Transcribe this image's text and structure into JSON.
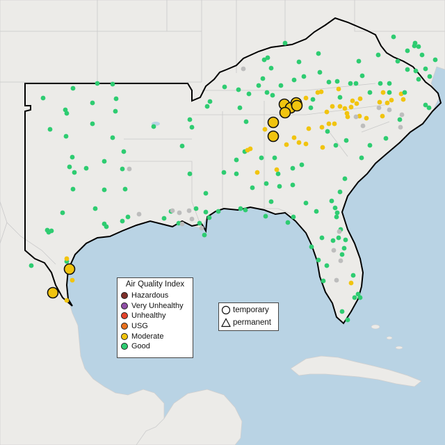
{
  "legend_aqi": {
    "title": "Air Quality Index",
    "items": [
      {
        "label": "Hazardous",
        "color": "#7e2f2a"
      },
      {
        "label": "Very Unhealthy",
        "color": "#8f4fa6"
      },
      {
        "label": "Unhealthy",
        "color": "#e4442c"
      },
      {
        "label": "USG",
        "color": "#e8711f"
      },
      {
        "label": "Moderate",
        "color": "#f1c40f"
      },
      {
        "label": "Good",
        "color": "#2ecc71"
      }
    ]
  },
  "legend_monitor": {
    "items": [
      {
        "label": "temporary",
        "shape": "circle"
      },
      {
        "label": "permanent",
        "shape": "triangle"
      }
    ]
  },
  "colors": {
    "water": "#b9d3e4",
    "land": "#ecebe8",
    "region_border": "#000000",
    "no_data": "#bdbdbd",
    "good": "#2ecc71",
    "moderate": "#f1c40f"
  }
}
